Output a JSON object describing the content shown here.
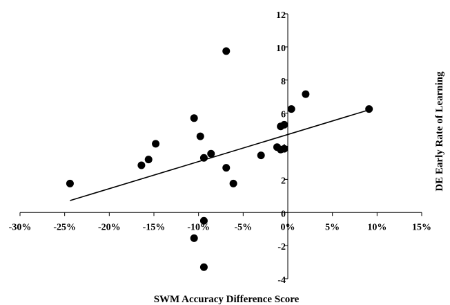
{
  "chart_data": {
    "type": "scatter",
    "title": "",
    "xlabel": "SWM Accuracy Difference Score",
    "ylabel": "DE Early Rate of Learning",
    "xlim": [
      -0.3,
      0.15
    ],
    "ylim": [
      -4,
      12
    ],
    "x_ticks": [
      {
        "value": -0.3,
        "label": "-30%"
      },
      {
        "value": -0.25,
        "label": "-25%"
      },
      {
        "value": -0.2,
        "label": "-20%"
      },
      {
        "value": -0.15,
        "label": "-15%"
      },
      {
        "value": -0.1,
        "label": "-10%"
      },
      {
        "value": -0.05,
        "label": "-5%"
      },
      {
        "value": 0.0,
        "label": "0%"
      },
      {
        "value": 0.05,
        "label": "5%"
      },
      {
        "value": 0.1,
        "label": "10%"
      },
      {
        "value": 0.15,
        "label": "15%"
      }
    ],
    "y_ticks": [
      {
        "value": -4,
        "label": "-4"
      },
      {
        "value": -2,
        "label": "-2"
      },
      {
        "value": 0,
        "label": "0"
      },
      {
        "value": 2,
        "label": "2"
      },
      {
        "value": 4,
        "label": "4"
      },
      {
        "value": 6,
        "label": "6"
      },
      {
        "value": 8,
        "label": "8"
      },
      {
        "value": 10,
        "label": "10"
      },
      {
        "value": 12,
        "label": "12"
      }
    ],
    "points": [
      {
        "x": -0.244,
        "y": 1.75
      },
      {
        "x": -0.164,
        "y": 2.85
      },
      {
        "x": -0.156,
        "y": 3.2
      },
      {
        "x": -0.148,
        "y": 4.15
      },
      {
        "x": -0.105,
        "y": 5.7
      },
      {
        "x": -0.105,
        "y": -1.55
      },
      {
        "x": -0.098,
        "y": 4.6
      },
      {
        "x": -0.094,
        "y": 3.3
      },
      {
        "x": -0.094,
        "y": -0.5
      },
      {
        "x": -0.094,
        "y": -3.3
      },
      {
        "x": -0.086,
        "y": 3.55
      },
      {
        "x": -0.069,
        "y": 9.75
      },
      {
        "x": -0.069,
        "y": 2.7
      },
      {
        "x": -0.061,
        "y": 1.75
      },
      {
        "x": -0.03,
        "y": 3.45
      },
      {
        "x": -0.012,
        "y": 3.95
      },
      {
        "x": -0.008,
        "y": 3.8
      },
      {
        "x": -0.008,
        "y": 5.2
      },
      {
        "x": -0.004,
        "y": 5.3
      },
      {
        "x": -0.004,
        "y": 3.85
      },
      {
        "x": 0.004,
        "y": 6.25
      },
      {
        "x": 0.02,
        "y": 7.15
      },
      {
        "x": 0.091,
        "y": 6.25
      }
    ],
    "trendline": {
      "x": [
        -0.244,
        0.091
      ],
      "y": [
        0.72,
        6.2
      ]
    },
    "grid": false,
    "legend": "none"
  }
}
